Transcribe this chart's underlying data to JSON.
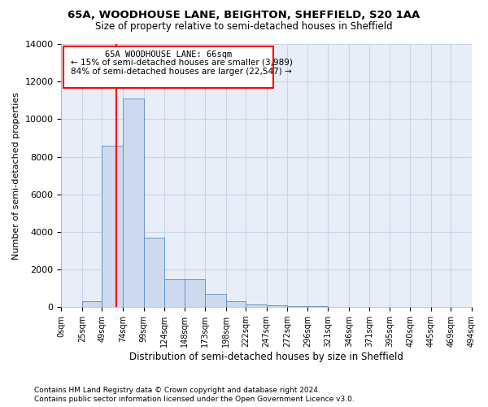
{
  "title": "65A, WOODHOUSE LANE, BEIGHTON, SHEFFIELD, S20 1AA",
  "subtitle": "Size of property relative to semi-detached houses in Sheffield",
  "xlabel": "Distribution of semi-detached houses by size in Sheffield",
  "ylabel": "Number of semi-detached properties",
  "footnote1": "Contains HM Land Registry data © Crown copyright and database right 2024.",
  "footnote2": "Contains public sector information licensed under the Open Government Licence v3.0.",
  "annotation_line1": "65A WOODHOUSE LANE: 66sqm",
  "annotation_line2": "← 15% of semi-detached houses are smaller (3,989)",
  "annotation_line3": "84% of semi-detached houses are larger (22,547) →",
  "property_size": 66,
  "bar_left_edges": [
    0,
    25,
    49,
    74,
    99,
    124,
    148,
    173,
    198,
    222,
    247,
    272,
    296,
    321,
    346,
    371,
    395,
    420,
    445,
    469
  ],
  "bar_heights": [
    0,
    300,
    8600,
    11100,
    3700,
    1500,
    1500,
    700,
    300,
    150,
    100,
    50,
    50,
    20,
    10,
    5,
    3,
    3,
    3,
    3
  ],
  "bar_color": "#ccd9ee",
  "bar_edge_color": "#5b8dc8",
  "red_line_x": 66,
  "ylim": [
    0,
    14000
  ],
  "xlim": [
    0,
    494
  ],
  "xtick_labels": [
    "0sqm",
    "25sqm",
    "49sqm",
    "74sqm",
    "99sqm",
    "124sqm",
    "148sqm",
    "173sqm",
    "198sqm",
    "222sqm",
    "247sqm",
    "272sqm",
    "296sqm",
    "321sqm",
    "346sqm",
    "371sqm",
    "395sqm",
    "420sqm",
    "445sqm",
    "469sqm",
    "494sqm"
  ],
  "xtick_positions": [
    0,
    25,
    49,
    74,
    99,
    124,
    148,
    173,
    198,
    222,
    247,
    272,
    296,
    321,
    346,
    371,
    395,
    420,
    445,
    469,
    494
  ],
  "grid_color": "#c8d4e8",
  "background_color": "#e8eef8",
  "ytick_vals": [
    0,
    2000,
    4000,
    6000,
    8000,
    10000,
    12000,
    14000
  ]
}
